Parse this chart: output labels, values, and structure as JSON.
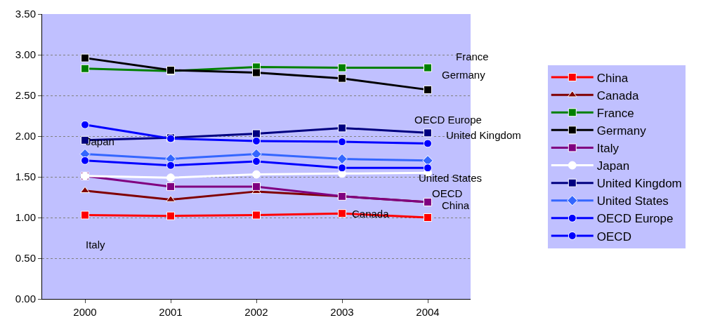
{
  "chart_data": {
    "type": "line",
    "categories": [
      "2000",
      "2001",
      "2002",
      "2003",
      "2004"
    ],
    "series": [
      {
        "name": "China",
        "color": "#ff0000",
        "marker": "square",
        "values": [
          1.03,
          1.02,
          1.03,
          1.05,
          1.0
        ]
      },
      {
        "name": "Canada",
        "color": "#800000",
        "marker": "triangle",
        "values": [
          1.33,
          1.22,
          1.32,
          1.26,
          1.19
        ]
      },
      {
        "name": "France",
        "color": "#008000",
        "marker": "square",
        "values": [
          2.83,
          2.8,
          2.85,
          2.84,
          2.84
        ]
      },
      {
        "name": "Germany",
        "color": "#000000",
        "marker": "square",
        "values": [
          2.96,
          2.81,
          2.78,
          2.71,
          2.57
        ]
      },
      {
        "name": "Italy",
        "color": "#800080",
        "marker": "square",
        "values": [
          1.51,
          1.38,
          1.38,
          1.26,
          1.19
        ]
      },
      {
        "name": "Japan",
        "color": "#ffffff",
        "marker": "circle",
        "values": [
          1.51,
          1.49,
          1.53,
          1.54,
          1.55
        ]
      },
      {
        "name": "United Kingdom",
        "color": "#000080",
        "marker": "square",
        "values": [
          1.95,
          1.98,
          2.03,
          2.1,
          2.04
        ]
      },
      {
        "name": "United States",
        "color": "#3366ff",
        "marker": "diamond",
        "values": [
          1.78,
          1.72,
          1.78,
          1.72,
          1.7
        ]
      },
      {
        "name": "OECD Europe",
        "color": "#0000ff",
        "marker": "circle",
        "values": [
          2.14,
          1.97,
          1.94,
          1.93,
          1.91
        ]
      },
      {
        "name": "OECD",
        "color": "#0000ff",
        "marker": "circle",
        "values": [
          1.7,
          1.64,
          1.69,
          1.61,
          1.61
        ]
      }
    ],
    "ylim": [
      0,
      3.5
    ],
    "yticks": [
      {
        "value": 0,
        "label": "0.00"
      },
      {
        "value": 0.5,
        "label": "0.50"
      },
      {
        "value": 1,
        "label": "1.00"
      },
      {
        "value": 1.5,
        "label": "1.50"
      },
      {
        "value": 2,
        "label": "2.00"
      },
      {
        "value": 2.5,
        "label": "2.50"
      },
      {
        "value": 3,
        "label": "3.00"
      },
      {
        "value": 3.5,
        "label": "3.50"
      }
    ],
    "grid": "y",
    "legend": "right",
    "line_style": "solid",
    "annotations": [
      "France",
      "Germany",
      "OECD Europe",
      "United Kingdom",
      "Japan",
      "United States",
      "OECD",
      "China",
      "Canada",
      "Italy"
    ]
  }
}
